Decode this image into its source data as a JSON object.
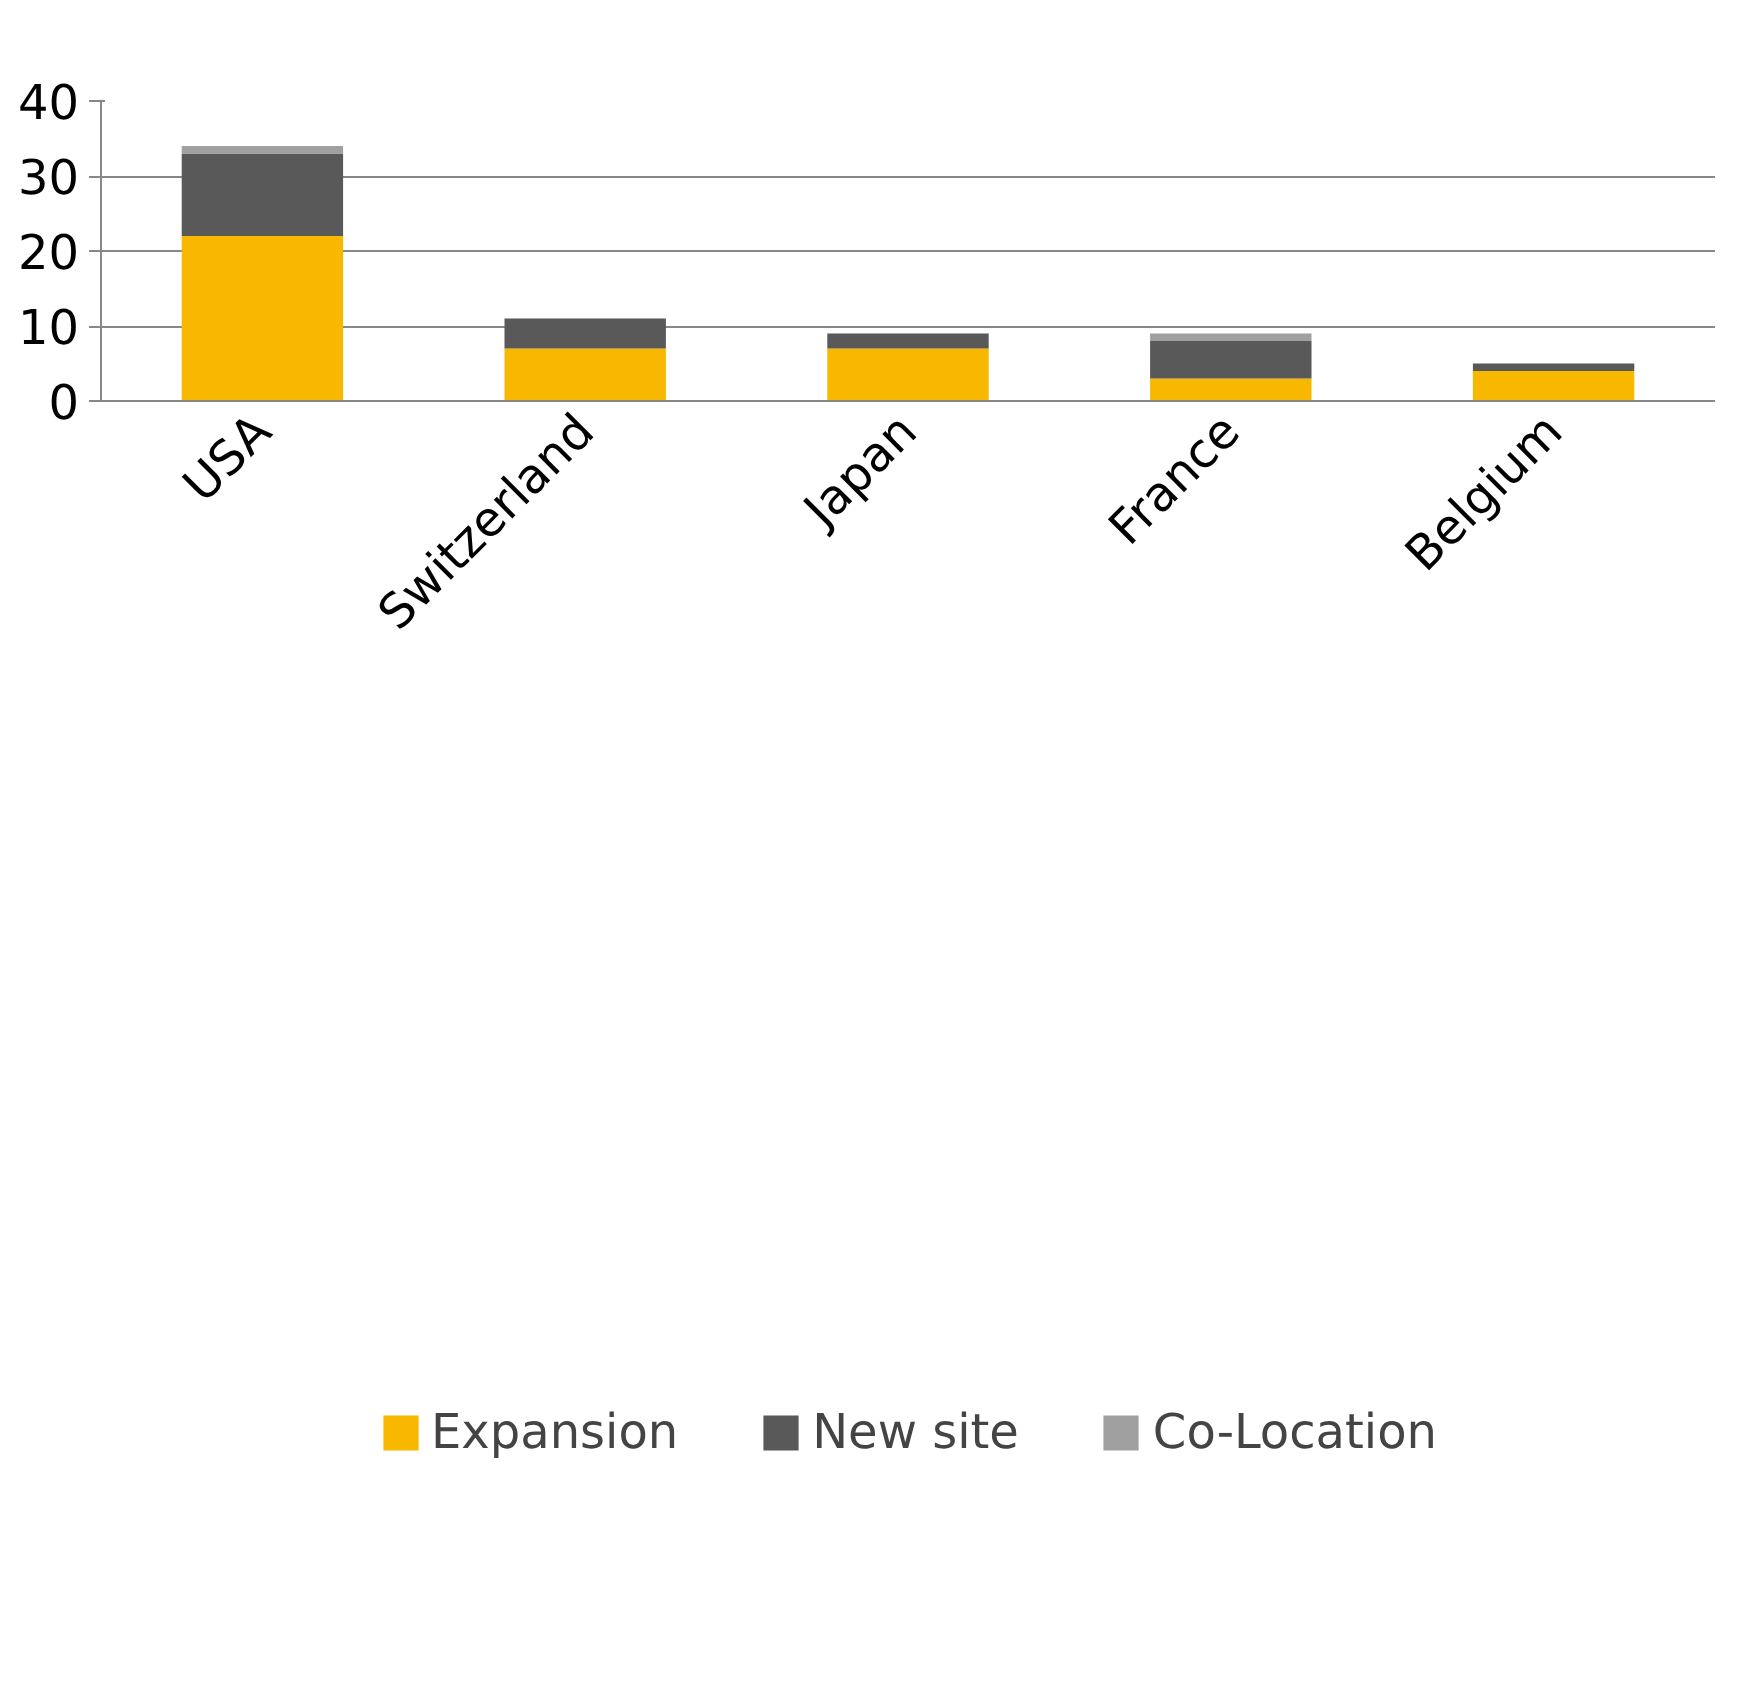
{
  "chart_data": {
    "type": "bar",
    "stacked": true,
    "categories": [
      "USA",
      "Switzerland",
      "Japan",
      "France",
      "Belgium"
    ],
    "series": [
      {
        "name": "Expansion",
        "color": "#f9b800",
        "values": [
          22,
          7,
          7,
          3,
          4
        ]
      },
      {
        "name": "New site",
        "color": "#595959",
        "values": [
          11,
          4,
          2,
          5,
          1
        ]
      },
      {
        "name": "Co-Location",
        "color": "#a0a0a0",
        "values": [
          1,
          0,
          0,
          1,
          0
        ]
      }
    ],
    "ylim": [
      0,
      40
    ],
    "yticks": [
      0,
      10,
      20,
      30,
      40
    ],
    "grid": "y",
    "legend": "bottom"
  }
}
